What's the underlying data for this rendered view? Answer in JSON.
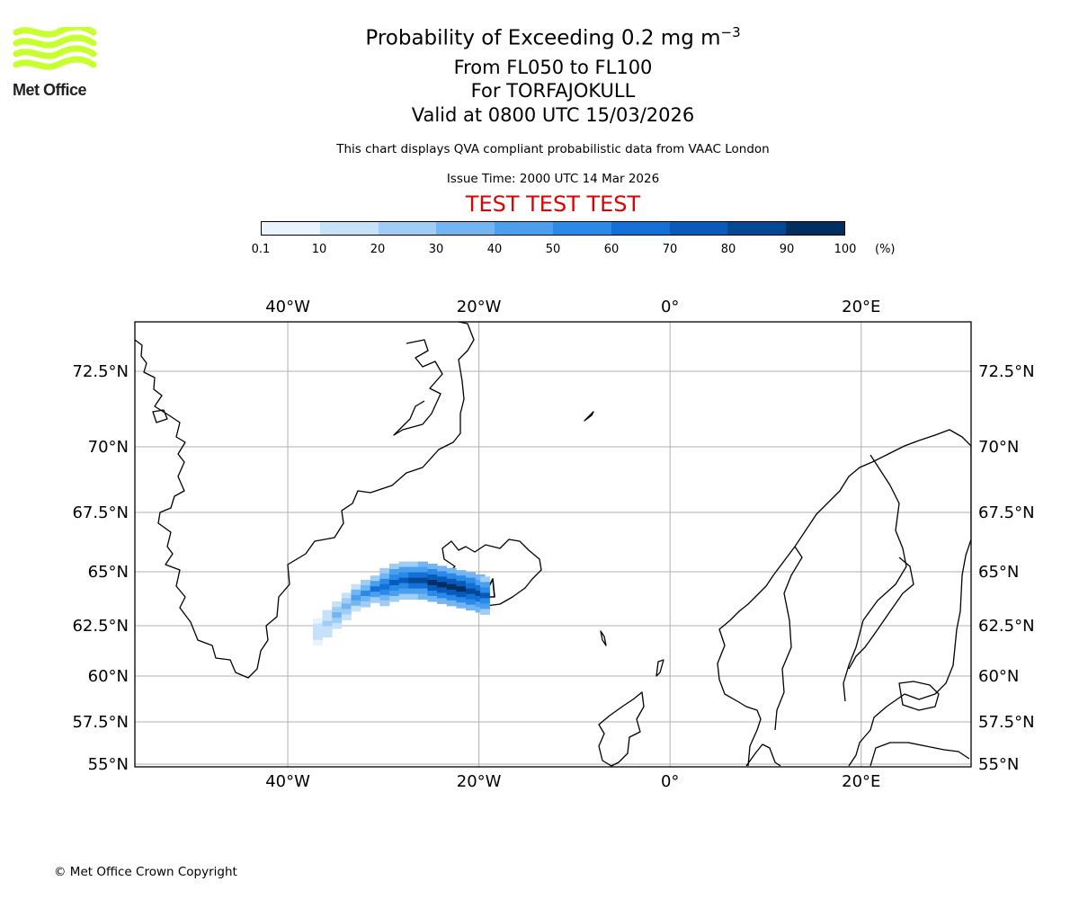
{
  "logo": {
    "text": "Met Office",
    "color": "#c8ff2e"
  },
  "title": {
    "line1": "Probability of Exceeding 0.2 mg m",
    "line1_superscript": "−3",
    "line2": "From FL050 to FL100",
    "line3": "For TORFAJOKULL",
    "line4": "Valid at 0800 UTC 15/03/2026",
    "subtitle": "This chart displays QVA compliant probabilistic data from VAAC London",
    "issue_time": "Issue Time: 2000 UTC 14 Mar 2026",
    "test_banner": "TEST TEST TEST"
  },
  "colorbar": {
    "ticks": [
      "0.1",
      "10",
      "20",
      "30",
      "40",
      "50",
      "60",
      "70",
      "80",
      "90",
      "100"
    ],
    "unit": "(%)",
    "colors": [
      "#e8f3fd",
      "#c6e2fa",
      "#9fcdf6",
      "#72b5f2",
      "#4aa0ef",
      "#2a8aea",
      "#1270d8",
      "#085bbb",
      "#034896",
      "#022f62"
    ]
  },
  "map": {
    "lon_labels": [
      "40°W",
      "20°W",
      "0°",
      "20°E"
    ],
    "lat_labels": [
      "72.5°N",
      "70°N",
      "67.5°N",
      "65°N",
      "62.5°N",
      "60°N",
      "57.5°N",
      "55°N"
    ],
    "volcano_name": "TORFAJOKULL"
  },
  "chart_data": {
    "type": "heatmap",
    "title": "Probability of Exceeding 0.2 mg m−3",
    "value_unit": "%",
    "lon_range": [
      -56,
      31.5
    ],
    "lat_range": [
      55,
      74.5
    ],
    "volcano": {
      "lon": -19.1,
      "lat": 63.9
    },
    "plume": [
      {
        "lon": -37,
        "lat": 62.2,
        "value": 15
      },
      {
        "lon": -36,
        "lat": 62.6,
        "value": 25
      },
      {
        "lon": -35,
        "lat": 63.0,
        "value": 30
      },
      {
        "lon": -34,
        "lat": 63.4,
        "value": 35
      },
      {
        "lon": -33,
        "lat": 63.8,
        "value": 45
      },
      {
        "lon": -32,
        "lat": 64.0,
        "value": 55
      },
      {
        "lon": -31,
        "lat": 64.2,
        "value": 60
      },
      {
        "lon": -30,
        "lat": 64.3,
        "value": 65
      },
      {
        "lon": -29,
        "lat": 64.5,
        "value": 70
      },
      {
        "lon": -28,
        "lat": 64.6,
        "value": 75
      },
      {
        "lon": -27,
        "lat": 64.6,
        "value": 80
      },
      {
        "lon": -26,
        "lat": 64.6,
        "value": 85
      },
      {
        "lon": -25,
        "lat": 64.5,
        "value": 90
      },
      {
        "lon": -24,
        "lat": 64.4,
        "value": 95
      },
      {
        "lon": -23,
        "lat": 64.3,
        "value": 95
      },
      {
        "lon": -22,
        "lat": 64.2,
        "value": 92
      },
      {
        "lon": -21,
        "lat": 64.1,
        "value": 88
      },
      {
        "lon": -20,
        "lat": 64.0,
        "value": 85
      },
      {
        "lon": -19.5,
        "lat": 63.9,
        "value": 70
      }
    ]
  },
  "footer": {
    "copyright": "© Met Office Crown Copyright"
  }
}
